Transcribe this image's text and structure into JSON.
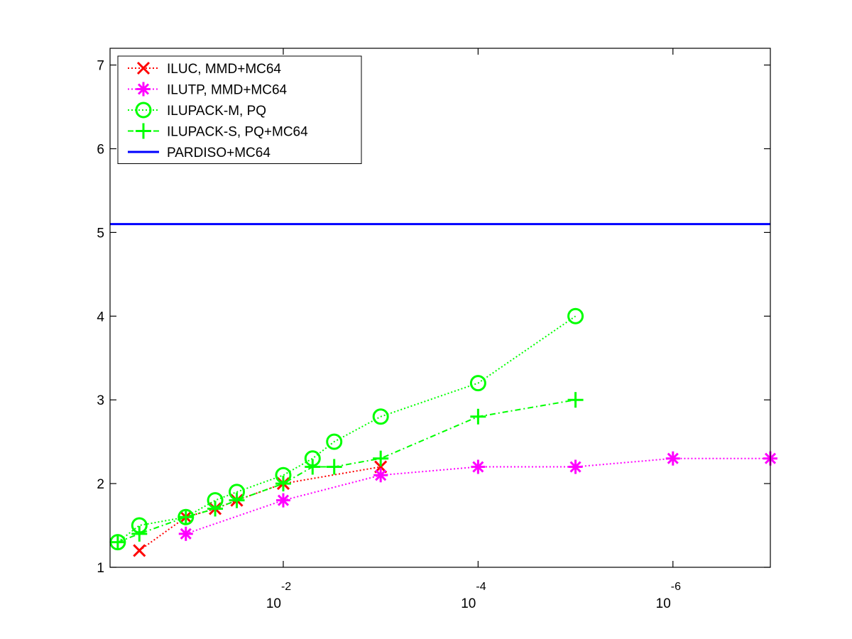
{
  "chart_data": {
    "type": "line",
    "xscale": "log",
    "xlim": [
      0.6,
      1e-07
    ],
    "ylim": [
      1,
      7.2
    ],
    "x_ticks": [
      {
        "value": 0.01,
        "base": "10",
        "exponent": "-2"
      },
      {
        "value": 0.0001,
        "base": "10",
        "exponent": "-4"
      },
      {
        "value": 1e-06,
        "base": "10",
        "exponent": "-6"
      }
    ],
    "y_ticks": [
      1,
      2,
      3,
      4,
      5,
      6,
      7
    ],
    "legend_position": "top-left",
    "series": [
      {
        "name": "ILUC, MMD+MC64",
        "color": "#ff0000",
        "marker": "x",
        "linestyle": "dotted",
        "x": [
          0.3,
          0.1,
          0.05,
          0.03,
          0.01,
          0.001
        ],
        "y": [
          1.2,
          1.6,
          1.7,
          1.8,
          2.0,
          2.2
        ]
      },
      {
        "name": "ILUTP, MMD+MC64",
        "color": "#ff00ff",
        "marker": "asterisk",
        "linestyle": "dotted",
        "x": [
          0.1,
          0.01,
          0.001,
          0.0001,
          1e-05,
          1e-06,
          1e-07
        ],
        "y": [
          1.4,
          1.8,
          2.1,
          2.2,
          2.2,
          2.3,
          2.3
        ]
      },
      {
        "name": "ILUPACK-M, PQ",
        "color": "#00ff00",
        "marker": "circle",
        "linestyle": "dotted",
        "x": [
          0.5,
          0.3,
          0.1,
          0.05,
          0.03,
          0.01,
          0.005,
          0.003,
          0.001,
          0.0001,
          1e-05
        ],
        "y": [
          1.3,
          1.5,
          1.6,
          1.8,
          1.9,
          2.1,
          2.3,
          2.5,
          2.8,
          3.2,
          4.0
        ]
      },
      {
        "name": "ILUPACK-S, PQ+MC64",
        "color": "#00ff00",
        "marker": "plus",
        "linestyle": "dashdot",
        "x": [
          0.5,
          0.3,
          0.1,
          0.05,
          0.03,
          0.01,
          0.005,
          0.003,
          0.001,
          0.0001,
          1e-05
        ],
        "y": [
          1.3,
          1.4,
          1.6,
          1.7,
          1.8,
          2.0,
          2.2,
          2.2,
          2.3,
          2.8,
          3.0
        ]
      },
      {
        "name": "PARDISO+MC64",
        "color": "#0000ff",
        "marker": "none",
        "linestyle": "solid",
        "x": [
          0.6,
          1e-07
        ],
        "y": [
          5.1,
          5.1
        ]
      }
    ]
  }
}
